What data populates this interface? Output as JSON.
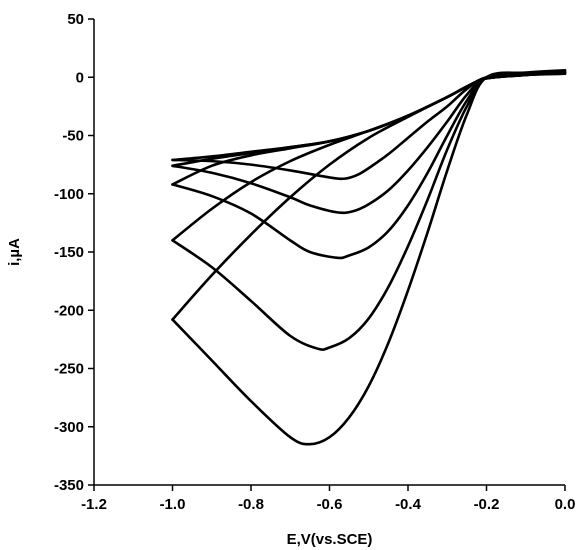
{
  "chart_data": {
    "type": "line",
    "title": "",
    "xlabel": "E,V(vs.SCE)",
    "ylabel": "i,µA",
    "xlim": [
      -1.2,
      0.0
    ],
    "ylim": [
      -350,
      50
    ],
    "x_ticks": [
      -1.2,
      -1.0,
      -0.8,
      -0.6,
      -0.4,
      -0.2,
      0.0
    ],
    "x_tick_labels": [
      "-1.2",
      "-1.0",
      "-0.8",
      "-0.6",
      "-0.4",
      "-0.2",
      "0.0"
    ],
    "y_ticks": [
      50,
      0,
      -50,
      -100,
      -150,
      -200,
      -250,
      -300,
      -350
    ],
    "y_tick_labels": [
      "50",
      "0",
      "-50",
      "-100",
      "-150",
      "-200",
      "-250",
      "-300",
      "-350"
    ],
    "grid": false,
    "legend": "none",
    "line_color": "#000000",
    "series": [
      {
        "forward": [
          [
            0.0,
            3
          ],
          [
            -0.1,
            2.5
          ],
          [
            -0.2,
            0
          ],
          [
            -0.25,
            -10
          ],
          [
            -0.3,
            -25
          ],
          [
            -0.35,
            -38
          ],
          [
            -0.4,
            -52
          ],
          [
            -0.45,
            -66
          ],
          [
            -0.5,
            -78
          ],
          [
            -0.53,
            -84
          ],
          [
            -0.56,
            -87
          ],
          [
            -0.6,
            -86
          ],
          [
            -0.7,
            -80
          ],
          [
            -0.8,
            -75
          ],
          [
            -0.9,
            -72
          ],
          [
            -1.0,
            -71
          ]
        ],
        "reverse": [
          [
            -1.0,
            -71
          ],
          [
            -0.9,
            -68
          ],
          [
            -0.8,
            -64
          ],
          [
            -0.7,
            -60
          ],
          [
            -0.6,
            -55
          ],
          [
            -0.5,
            -46
          ],
          [
            -0.4,
            -33
          ],
          [
            -0.3,
            -17
          ],
          [
            -0.25,
            -8
          ],
          [
            -0.2,
            -1
          ],
          [
            -0.1,
            2
          ],
          [
            0.0,
            3
          ]
        ]
      },
      {
        "forward": [
          [
            0.0,
            4
          ],
          [
            -0.1,
            3
          ],
          [
            -0.2,
            0
          ],
          [
            -0.25,
            -15
          ],
          [
            -0.3,
            -38
          ],
          [
            -0.35,
            -60
          ],
          [
            -0.4,
            -80
          ],
          [
            -0.45,
            -97
          ],
          [
            -0.5,
            -109
          ],
          [
            -0.54,
            -115
          ],
          [
            -0.58,
            -116
          ],
          [
            -0.65,
            -110
          ],
          [
            -0.7,
            -103
          ],
          [
            -0.8,
            -91
          ],
          [
            -0.9,
            -82
          ],
          [
            -1.0,
            -76
          ]
        ],
        "reverse": [
          [
            -1.0,
            -76
          ],
          [
            -0.9,
            -70
          ],
          [
            -0.8,
            -65
          ],
          [
            -0.7,
            -60
          ],
          [
            -0.6,
            -55
          ],
          [
            -0.5,
            -46
          ],
          [
            -0.4,
            -33
          ],
          [
            -0.3,
            -17
          ],
          [
            -0.25,
            -8
          ],
          [
            -0.2,
            -1
          ],
          [
            -0.1,
            2
          ],
          [
            0.0,
            4
          ]
        ]
      },
      {
        "forward": [
          [
            0.0,
            4
          ],
          [
            -0.1,
            3
          ],
          [
            -0.2,
            0
          ],
          [
            -0.25,
            -20
          ],
          [
            -0.3,
            -50
          ],
          [
            -0.35,
            -82
          ],
          [
            -0.4,
            -110
          ],
          [
            -0.45,
            -132
          ],
          [
            -0.5,
            -146
          ],
          [
            -0.55,
            -153
          ],
          [
            -0.58,
            -155
          ],
          [
            -0.65,
            -150
          ],
          [
            -0.7,
            -140
          ],
          [
            -0.8,
            -117
          ],
          [
            -0.9,
            -102
          ],
          [
            -1.0,
            -92
          ]
        ],
        "reverse": [
          [
            -1.0,
            -92
          ],
          [
            -0.9,
            -76
          ],
          [
            -0.8,
            -67
          ],
          [
            -0.7,
            -61
          ],
          [
            -0.6,
            -55
          ],
          [
            -0.5,
            -46
          ],
          [
            -0.4,
            -33
          ],
          [
            -0.3,
            -17
          ],
          [
            -0.25,
            -8
          ],
          [
            -0.2,
            -1
          ],
          [
            -0.1,
            2
          ],
          [
            0.0,
            4
          ]
        ]
      },
      {
        "forward": [
          [
            0.0,
            5
          ],
          [
            -0.1,
            3
          ],
          [
            -0.2,
            0
          ],
          [
            -0.25,
            -25
          ],
          [
            -0.3,
            -62
          ],
          [
            -0.35,
            -105
          ],
          [
            -0.4,
            -145
          ],
          [
            -0.45,
            -180
          ],
          [
            -0.5,
            -207
          ],
          [
            -0.55,
            -224
          ],
          [
            -0.6,
            -232
          ],
          [
            -0.63,
            -233
          ],
          [
            -0.7,
            -222
          ],
          [
            -0.8,
            -192
          ],
          [
            -0.9,
            -163
          ],
          [
            -1.0,
            -140
          ]
        ],
        "reverse": [
          [
            -1.0,
            -140
          ],
          [
            -0.9,
            -113
          ],
          [
            -0.8,
            -90
          ],
          [
            -0.7,
            -72
          ],
          [
            -0.6,
            -58
          ],
          [
            -0.5,
            -46
          ],
          [
            -0.4,
            -33
          ],
          [
            -0.3,
            -17
          ],
          [
            -0.25,
            -8
          ],
          [
            -0.2,
            -1
          ],
          [
            -0.1,
            2
          ],
          [
            0.0,
            5
          ]
        ]
      },
      {
        "forward": [
          [
            0.0,
            6
          ],
          [
            -0.1,
            4
          ],
          [
            -0.2,
            0
          ],
          [
            -0.25,
            -32
          ],
          [
            -0.3,
            -80
          ],
          [
            -0.35,
            -133
          ],
          [
            -0.4,
            -183
          ],
          [
            -0.45,
            -228
          ],
          [
            -0.5,
            -265
          ],
          [
            -0.55,
            -292
          ],
          [
            -0.6,
            -309
          ],
          [
            -0.65,
            -315
          ],
          [
            -0.7,
            -309
          ],
          [
            -0.8,
            -278
          ],
          [
            -0.9,
            -243
          ],
          [
            -1.0,
            -208
          ]
        ],
        "reverse": [
          [
            -1.0,
            -208
          ],
          [
            -0.9,
            -170
          ],
          [
            -0.8,
            -135
          ],
          [
            -0.7,
            -103
          ],
          [
            -0.6,
            -75
          ],
          [
            -0.5,
            -52
          ],
          [
            -0.4,
            -34
          ],
          [
            -0.3,
            -17
          ],
          [
            -0.25,
            -8
          ],
          [
            -0.2,
            -1
          ],
          [
            -0.1,
            2
          ],
          [
            0.0,
            6
          ]
        ]
      }
    ]
  }
}
